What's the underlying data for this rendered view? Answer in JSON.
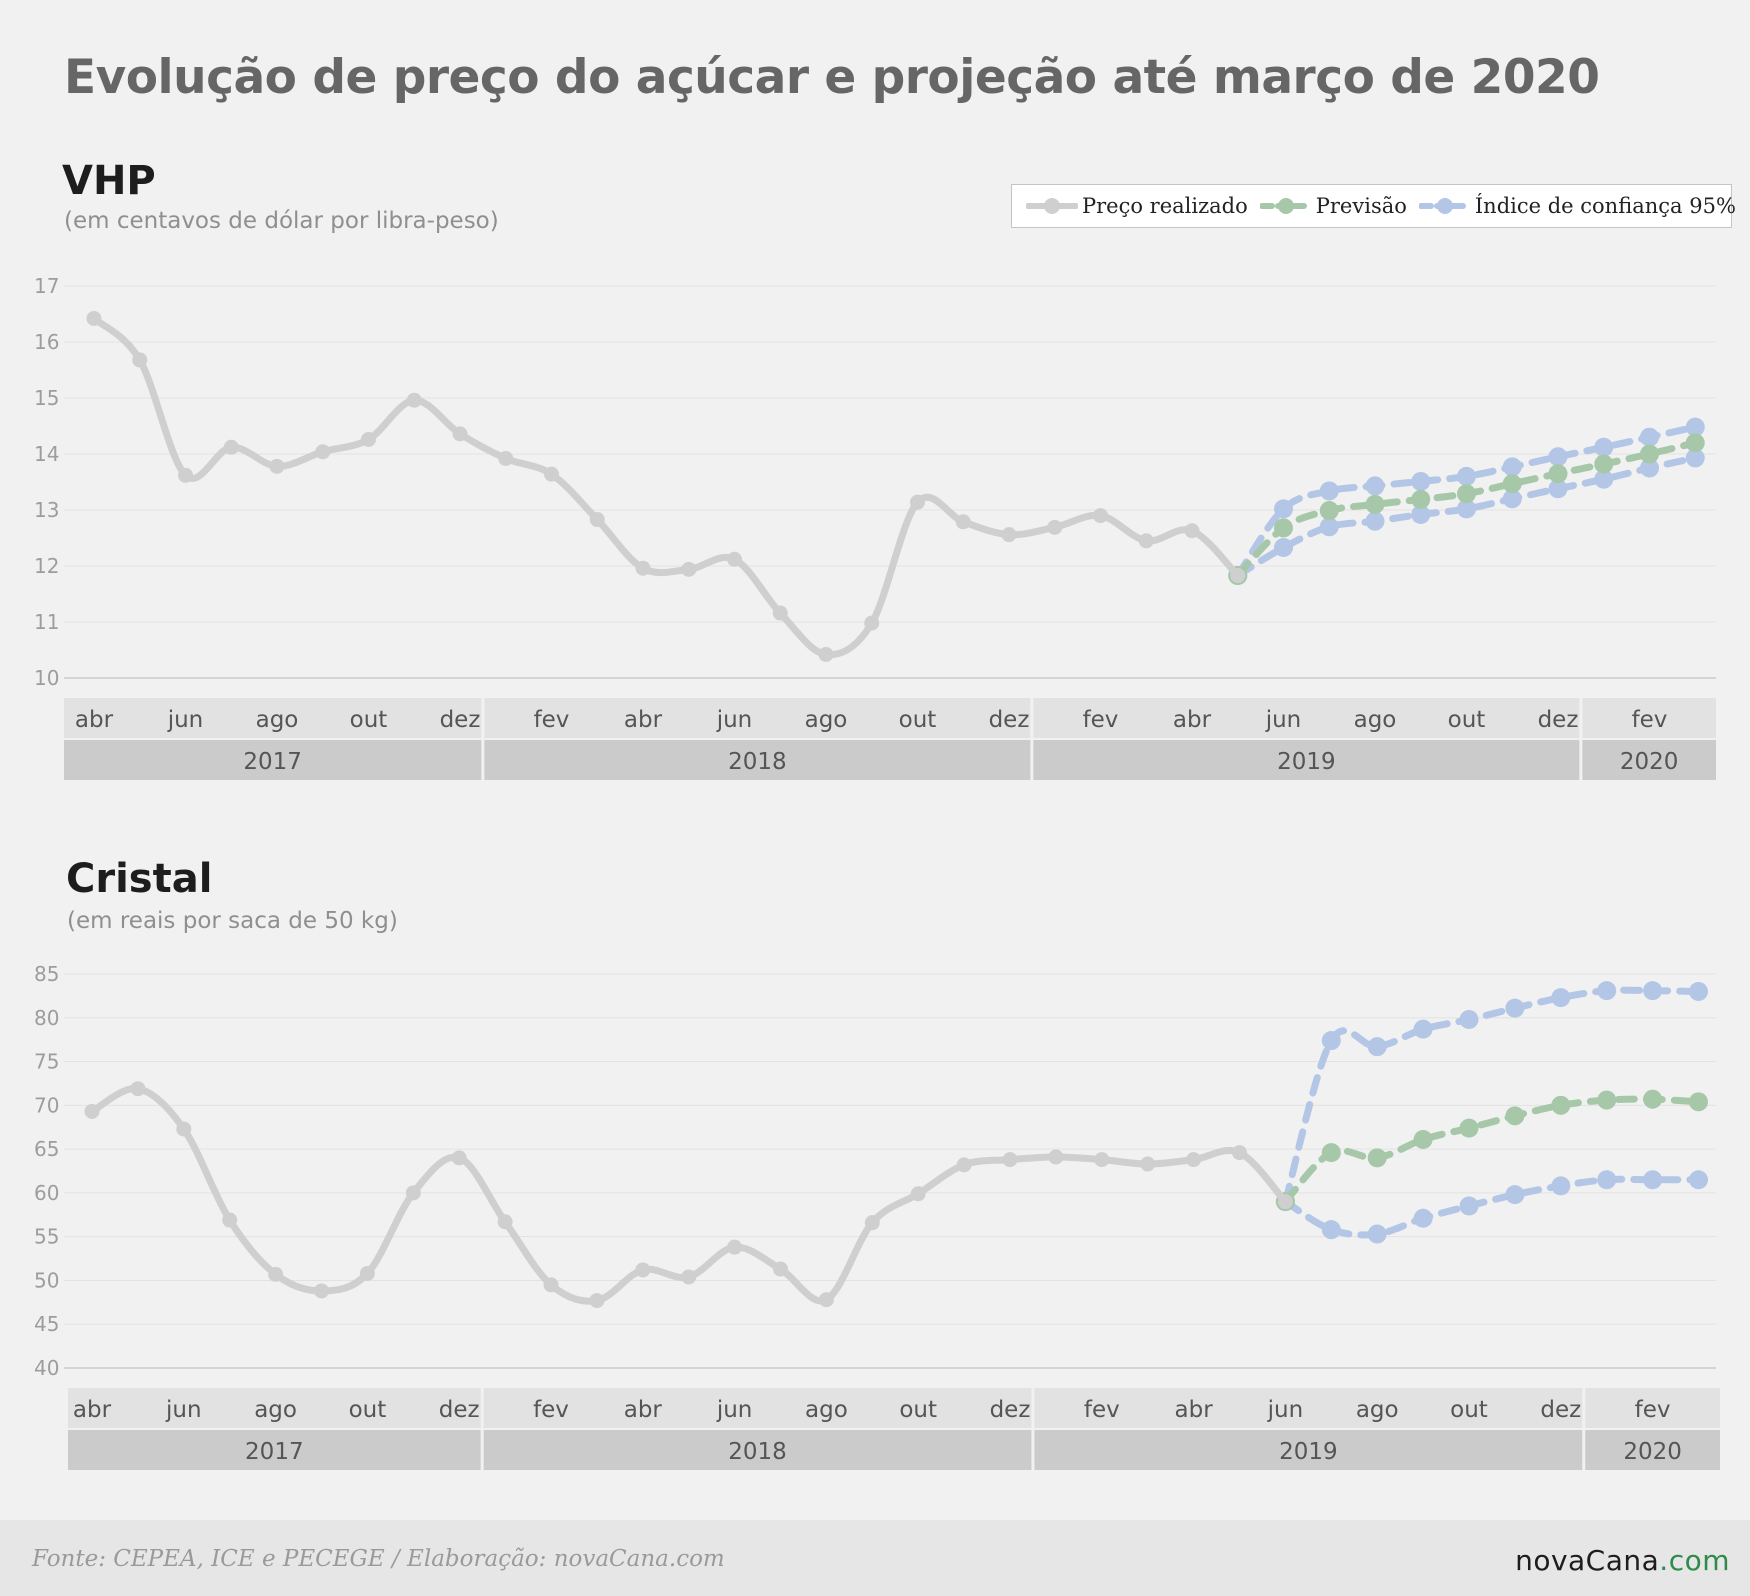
{
  "title": "Evolução de preço do açúcar e projeção até março de 2020",
  "legend": {
    "realized": "Preço realizado",
    "forecast": "Previsão",
    "confidence": "Índice de confiança 95%"
  },
  "colors": {
    "realized": "#cfcfcf",
    "forecast": "#a6c8a9",
    "confidence": "#b3c6e6",
    "grid": "#e2e2e2",
    "month_band": "#e2e2e2",
    "year_band": "#cbcbcb"
  },
  "footer": {
    "source": "Fonte: CEPEA, ICE e PECEGE / Elaboração: novaCana.com",
    "brand_main": "novaCana",
    "brand_suffix": ".com"
  },
  "chart_data": [
    {
      "type": "line",
      "title": "VHP",
      "subtitle": "(em centavos de dólar por libra-peso)",
      "x": [
        "2017-04",
        "2017-05",
        "2017-06",
        "2017-07",
        "2017-08",
        "2017-09",
        "2017-10",
        "2017-11",
        "2017-12",
        "2018-01",
        "2018-02",
        "2018-03",
        "2018-04",
        "2018-05",
        "2018-06",
        "2018-07",
        "2018-08",
        "2018-09",
        "2018-10",
        "2018-11",
        "2018-12",
        "2019-01",
        "2019-02",
        "2019-03",
        "2019-04",
        "2019-05",
        "2019-06",
        "2019-07",
        "2019-08",
        "2019-09",
        "2019-10",
        "2019-11",
        "2019-12",
        "2020-01",
        "2020-02",
        "2020-03"
      ],
      "month_labels": [
        "abr",
        "jun",
        "ago",
        "out",
        "dez",
        "fev",
        "abr",
        "jun",
        "ago",
        "out",
        "dez",
        "fev",
        "abr",
        "jun",
        "ago",
        "out",
        "dez",
        "fev"
      ],
      "year_labels": [
        "2017",
        "2018",
        "2019",
        "2020"
      ],
      "ylim": [
        10,
        17
      ],
      "yticks": [
        10,
        11,
        12,
        13,
        14,
        15,
        16,
        17
      ],
      "series": [
        {
          "name": "Preço realizado",
          "values": [
            16.42,
            15.68,
            13.62,
            14.12,
            13.78,
            14.04,
            14.26,
            14.96,
            14.36,
            13.92,
            13.64,
            12.83,
            11.96,
            11.94,
            12.12,
            11.16,
            10.42,
            10.98,
            13.14,
            12.79,
            12.56,
            12.69,
            12.9,
            12.45,
            12.63,
            11.83,
            null,
            null,
            null,
            null,
            null,
            null,
            null,
            null,
            null,
            null
          ]
        },
        {
          "name": "Previsão",
          "values": [
            null,
            null,
            null,
            null,
            null,
            null,
            null,
            null,
            null,
            null,
            null,
            null,
            null,
            null,
            null,
            null,
            null,
            null,
            null,
            null,
            null,
            null,
            null,
            null,
            null,
            11.83,
            12.68,
            12.99,
            13.1,
            13.19,
            13.29,
            13.47,
            13.65,
            13.82,
            14.0,
            14.2
          ]
        },
        {
          "name": "Índice de confiança 95% (superior)",
          "values": [
            null,
            null,
            null,
            null,
            null,
            null,
            null,
            null,
            null,
            null,
            null,
            null,
            null,
            null,
            null,
            null,
            null,
            null,
            null,
            null,
            null,
            null,
            null,
            null,
            null,
            11.83,
            13.02,
            13.34,
            13.43,
            13.51,
            13.6,
            13.77,
            13.95,
            14.12,
            14.3,
            14.48
          ]
        },
        {
          "name": "Índice de confiança 95% (inferior)",
          "values": [
            null,
            null,
            null,
            null,
            null,
            null,
            null,
            null,
            null,
            null,
            null,
            null,
            null,
            null,
            null,
            null,
            null,
            null,
            null,
            null,
            null,
            null,
            null,
            null,
            null,
            11.83,
            12.33,
            12.7,
            12.8,
            12.92,
            13.02,
            13.2,
            13.38,
            13.55,
            13.75,
            13.93
          ]
        }
      ]
    },
    {
      "type": "line",
      "title": "Cristal",
      "subtitle": "(em reais por saca de 50 kg)",
      "x": [
        "2017-04",
        "2017-05",
        "2017-06",
        "2017-07",
        "2017-08",
        "2017-09",
        "2017-10",
        "2017-11",
        "2017-12",
        "2018-01",
        "2018-02",
        "2018-03",
        "2018-04",
        "2018-05",
        "2018-06",
        "2018-07",
        "2018-08",
        "2018-09",
        "2018-10",
        "2018-11",
        "2018-12",
        "2019-01",
        "2019-02",
        "2019-03",
        "2019-04",
        "2019-05",
        "2019-06",
        "2019-07",
        "2019-08",
        "2019-09",
        "2019-10",
        "2019-11",
        "2019-12",
        "2020-01",
        "2020-02",
        "2020-03"
      ],
      "month_labels": [
        "abr",
        "jun",
        "ago",
        "out",
        "dez",
        "fev",
        "abr",
        "jun",
        "ago",
        "out",
        "dez",
        "fev",
        "abr",
        "jun",
        "ago",
        "out",
        "dez",
        "fev"
      ],
      "year_labels": [
        "2017",
        "2018",
        "2019",
        "2020"
      ],
      "ylim": [
        40,
        85
      ],
      "yticks": [
        40,
        45,
        50,
        55,
        60,
        65,
        70,
        75,
        80,
        85
      ],
      "series": [
        {
          "name": "Preço realizado",
          "values": [
            69.3,
            71.9,
            67.3,
            56.9,
            50.7,
            48.8,
            50.8,
            60.0,
            64.0,
            56.7,
            49.5,
            47.7,
            51.2,
            50.4,
            53.8,
            51.3,
            47.8,
            56.6,
            59.9,
            63.2,
            63.8,
            64.1,
            63.8,
            63.3,
            63.8,
            64.6,
            59.0,
            null,
            null,
            null,
            null,
            null,
            null,
            null,
            null,
            null
          ]
        },
        {
          "name": "Previsão",
          "values": [
            null,
            null,
            null,
            null,
            null,
            null,
            null,
            null,
            null,
            null,
            null,
            null,
            null,
            null,
            null,
            null,
            null,
            null,
            null,
            null,
            null,
            null,
            null,
            null,
            null,
            null,
            59.0,
            64.6,
            64.0,
            66.1,
            67.4,
            68.8,
            70.0,
            70.6,
            70.7,
            70.4
          ]
        },
        {
          "name": "Índice de confiança 95% (superior)",
          "values": [
            null,
            null,
            null,
            null,
            null,
            null,
            null,
            null,
            null,
            null,
            null,
            null,
            null,
            null,
            null,
            null,
            null,
            null,
            null,
            null,
            null,
            null,
            null,
            null,
            null,
            null,
            59.0,
            77.4,
            76.7,
            78.7,
            79.8,
            81.1,
            82.3,
            83.1,
            83.1,
            83.0
          ]
        },
        {
          "name": "Índice de confiança 95% (inferior)",
          "values": [
            null,
            null,
            null,
            null,
            null,
            null,
            null,
            null,
            null,
            null,
            null,
            null,
            null,
            null,
            null,
            null,
            null,
            null,
            null,
            null,
            null,
            null,
            null,
            null,
            null,
            null,
            59.0,
            55.8,
            55.3,
            57.1,
            58.5,
            59.8,
            60.8,
            61.5,
            61.5,
            61.5
          ]
        }
      ]
    }
  ]
}
